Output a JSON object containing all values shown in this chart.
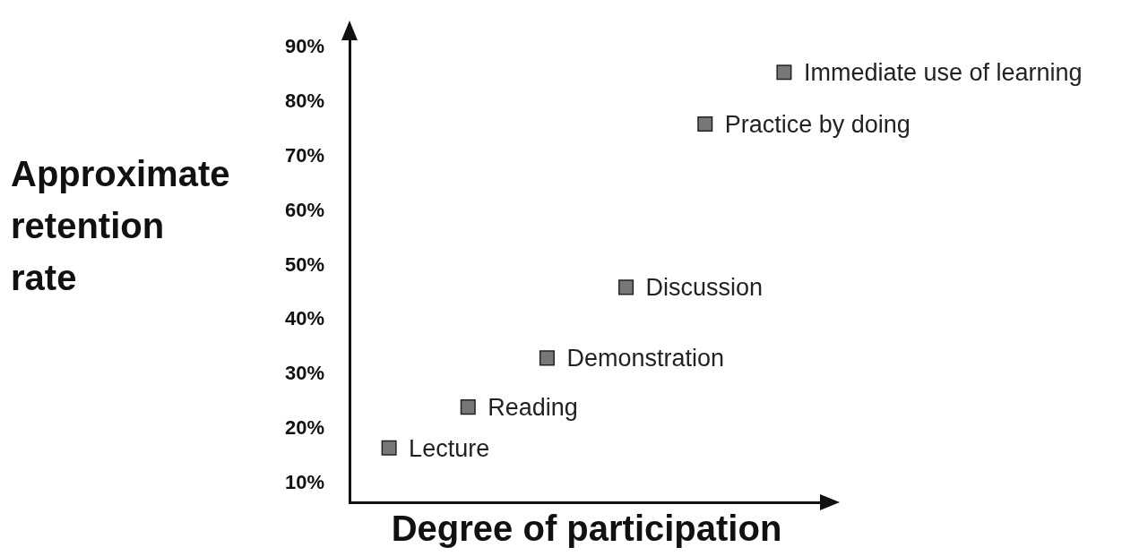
{
  "chart_data": {
    "type": "scatter",
    "xlabel": "Degree of participation",
    "ylabel": "Approximate retention rate",
    "categories": [
      null,
      null,
      null,
      null,
      null,
      null
    ],
    "values": [
      16.5,
      24,
      33,
      46,
      76,
      85.5
    ],
    "color": "#777777",
    "marker": "square",
    "grid": false,
    "legend": false,
    "tick_labels": "y",
    "ylim": [
      6.5,
      92
    ],
    "yticks": [
      {
        "value": 10,
        "label": "10%"
      },
      {
        "value": 20,
        "label": "20%"
      },
      {
        "value": 30,
        "label": "30%"
      },
      {
        "value": 40,
        "label": "40%"
      },
      {
        "value": 50,
        "label": "50%"
      },
      {
        "value": 60,
        "label": "60%"
      },
      {
        "value": 70,
        "label": "70%"
      },
      {
        "value": 80,
        "label": "80%"
      },
      {
        "value": 90,
        "label": "90%"
      }
    ],
    "annotations": [
      "Lecture",
      "Reading",
      "Demonstration",
      "Discussion",
      "Practice by doing",
      "Immediate use of learning"
    ]
  }
}
